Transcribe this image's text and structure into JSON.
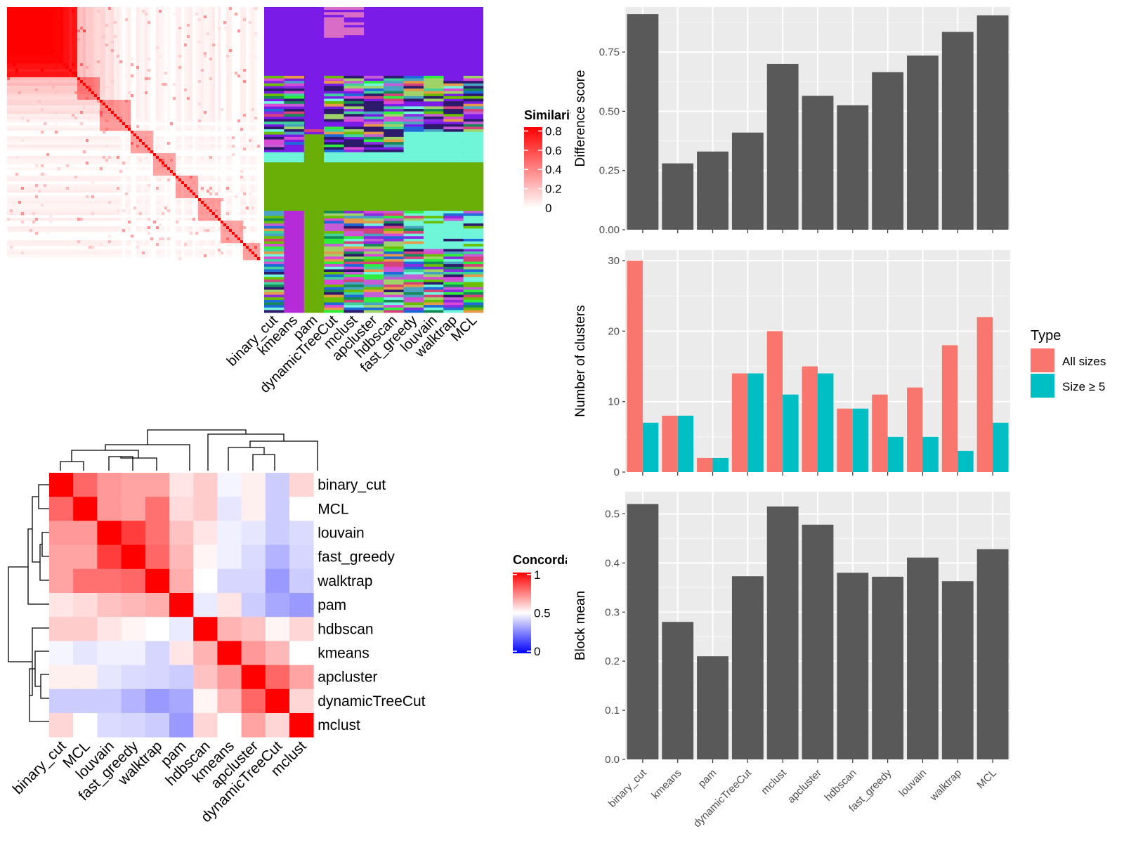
{
  "similarity_panel": {
    "legend_title": "Similarity",
    "legend_ticks": [
      "0",
      "0.2",
      "0.4",
      "0.6",
      "0.8"
    ],
    "legend_colors": [
      "#ffffff",
      "#ff0000"
    ],
    "column_labels": [
      "binary_cut",
      "kmeans",
      "pam",
      "dynamicTreeCut",
      "mclust",
      "apcluster",
      "hdbscan",
      "fast_greedy",
      "louvain",
      "walktrap",
      "MCL"
    ]
  },
  "concordance_panel": {
    "legend_title": "Concordance",
    "legend_ticks": [
      "0",
      "0.5",
      "1"
    ],
    "legend_colors": [
      "#0000ff",
      "#ffffff",
      "#ff0000"
    ],
    "methods": [
      "binary_cut",
      "MCL",
      "louvain",
      "fast_greedy",
      "walktrap",
      "pam",
      "hdbscan",
      "kmeans",
      "apcluster",
      "dynamicTreeCut",
      "mclust"
    ],
    "matrix": [
      [
        1.0,
        0.8,
        0.7,
        0.68,
        0.68,
        0.55,
        0.6,
        0.48,
        0.53,
        0.4,
        0.58
      ],
      [
        0.8,
        1.0,
        0.7,
        0.68,
        0.78,
        0.57,
        0.6,
        0.45,
        0.53,
        0.4,
        0.5
      ],
      [
        0.7,
        0.7,
        1.0,
        0.88,
        0.78,
        0.62,
        0.55,
        0.47,
        0.45,
        0.4,
        0.43
      ],
      [
        0.68,
        0.68,
        0.88,
        1.0,
        0.8,
        0.64,
        0.52,
        0.47,
        0.43,
        0.35,
        0.42
      ],
      [
        0.68,
        0.78,
        0.78,
        0.8,
        1.0,
        0.66,
        0.5,
        0.42,
        0.42,
        0.3,
        0.4
      ],
      [
        0.55,
        0.57,
        0.62,
        0.64,
        0.66,
        1.0,
        0.46,
        0.55,
        0.4,
        0.33,
        0.3
      ],
      [
        0.6,
        0.6,
        0.55,
        0.52,
        0.5,
        0.46,
        1.0,
        0.65,
        0.62,
        0.52,
        0.58
      ],
      [
        0.48,
        0.45,
        0.47,
        0.47,
        0.42,
        0.55,
        0.65,
        1.0,
        0.7,
        0.64,
        0.5
      ],
      [
        0.53,
        0.53,
        0.45,
        0.43,
        0.42,
        0.4,
        0.62,
        0.7,
        1.0,
        0.8,
        0.68
      ],
      [
        0.4,
        0.4,
        0.4,
        0.35,
        0.3,
        0.33,
        0.52,
        0.64,
        0.8,
        1.0,
        0.58
      ],
      [
        0.58,
        0.5,
        0.43,
        0.42,
        0.4,
        0.3,
        0.58,
        0.5,
        0.68,
        0.58,
        1.0
      ]
    ]
  },
  "chart_data": [
    {
      "type": "bar",
      "categories": [
        "binary_cut",
        "kmeans",
        "pam",
        "dynamicTreeCut",
        "mclust",
        "apcluster",
        "hdbscan",
        "fast_greedy",
        "louvain",
        "walktrap",
        "MCL"
      ],
      "values": [
        0.91,
        0.28,
        0.33,
        0.41,
        0.7,
        0.565,
        0.525,
        0.665,
        0.735,
        0.835,
        0.905
      ],
      "ylabel": "Difference score",
      "ylim": [
        0,
        0.94
      ],
      "yticks": [
        "0.00",
        "0.25",
        "0.50",
        "0.75"
      ],
      "grid": true,
      "bar_color": "#595959"
    },
    {
      "type": "bar",
      "categories": [
        "binary_cut",
        "kmeans",
        "pam",
        "dynamicTreeCut",
        "mclust",
        "apcluster",
        "hdbscan",
        "fast_greedy",
        "louvain",
        "walktrap",
        "MCL"
      ],
      "series": [
        {
          "name": "All sizes",
          "values": [
            30,
            8,
            2,
            14,
            20,
            15,
            9,
            11,
            12,
            18,
            22
          ],
          "color": "#f8766d"
        },
        {
          "name": "Size ≥ 5",
          "values": [
            7,
            8,
            2,
            14,
            11,
            14,
            9,
            5,
            5,
            3,
            7
          ],
          "color": "#00bfc4"
        }
      ],
      "ylabel": "Number of clusters",
      "ylim": [
        0,
        31.5
      ],
      "yticks": [
        "0",
        "10",
        "20",
        "30"
      ],
      "legend_title": "Type",
      "legend_position": "right",
      "grid": true
    },
    {
      "type": "bar",
      "categories": [
        "binary_cut",
        "kmeans",
        "pam",
        "dynamicTreeCut",
        "mclust",
        "apcluster",
        "hdbscan",
        "fast_greedy",
        "louvain",
        "walktrap",
        "MCL"
      ],
      "values": [
        0.52,
        0.28,
        0.21,
        0.373,
        0.515,
        0.478,
        0.38,
        0.372,
        0.411,
        0.363,
        0.428
      ],
      "ylabel": "Block mean",
      "ylim": [
        0,
        0.545
      ],
      "yticks": [
        "0.0",
        "0.1",
        "0.2",
        "0.3",
        "0.4",
        "0.5"
      ],
      "grid": true,
      "bar_color": "#595959"
    }
  ]
}
